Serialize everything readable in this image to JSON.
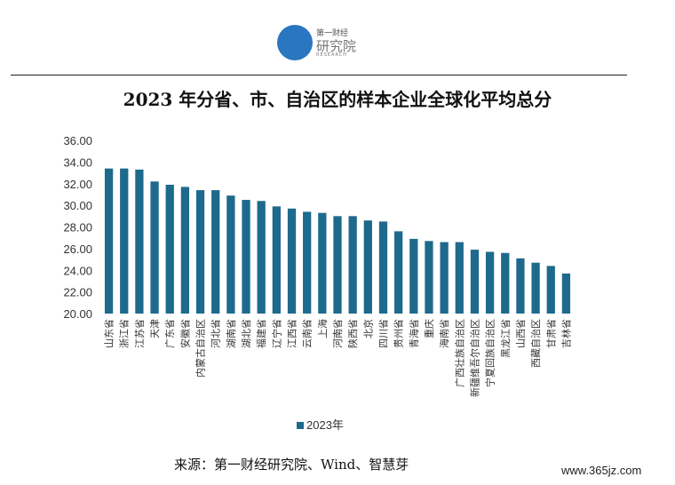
{
  "logo": {
    "small_text": "第一财经",
    "main_text": "研究院",
    "sub_text": "RESEARCH"
  },
  "title": "2023 年分省、市、自治区的样本企业全球化平均总分",
  "legend": {
    "label": "2023年",
    "color": "#1e6a8d"
  },
  "source": "来源：第一财经研究院、Wind、智慧芽",
  "watermark": "www.365jz.com",
  "chart_data": {
    "type": "bar",
    "title": "2023 年分省、市、自治区的样本企业全球化平均总分",
    "xlabel": "",
    "ylabel": "",
    "ylim": [
      20,
      36
    ],
    "yticks": [
      "20.00",
      "22.00",
      "24.00",
      "26.00",
      "28.00",
      "30.00",
      "32.00",
      "34.00",
      "36.00"
    ],
    "grid": false,
    "legend_position": "bottom",
    "categories": [
      "山东省",
      "浙江省",
      "江苏省",
      "天津",
      "广东省",
      "安徽省",
      "内蒙古自治区",
      "河北省",
      "湖南省",
      "湖北省",
      "福建省",
      "辽宁省",
      "江西省",
      "云南省",
      "上海",
      "河南省",
      "陕西省",
      "北京",
      "四川省",
      "贵州省",
      "青海省",
      "重庆",
      "海南省",
      "广西壮族自治区",
      "新疆维吾尔自治区",
      "宁夏回族自治区",
      "黑龙江省",
      "山西省",
      "西藏自治区",
      "甘肃省",
      "吉林省"
    ],
    "series": [
      {
        "name": "2023年",
        "color": "#1e6a8d",
        "values": [
          33.4,
          33.4,
          33.3,
          32.2,
          31.9,
          31.7,
          31.4,
          31.4,
          30.9,
          30.5,
          30.4,
          29.9,
          29.7,
          29.4,
          29.3,
          29.0,
          29.0,
          28.6,
          28.5,
          27.6,
          26.9,
          26.7,
          26.6,
          26.6,
          25.9,
          25.7,
          25.6,
          25.1,
          24.7,
          24.4,
          23.7
        ]
      }
    ]
  }
}
